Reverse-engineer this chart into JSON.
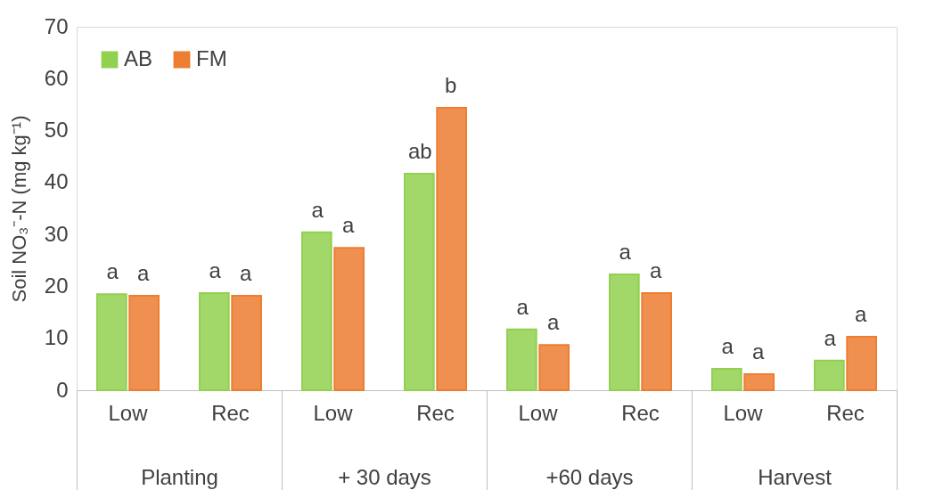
{
  "chart_data": {
    "type": "bar",
    "ylabel": "Soil NO₃⁻-N (mg kg⁻¹)",
    "categories": [
      "Low",
      "Rec",
      "Low",
      "Rec",
      "Low",
      "Rec",
      "Low",
      "Rec"
    ],
    "annotations": [
      "Planting",
      "+ 30 days",
      "+60 days",
      "Harvest"
    ],
    "series": [
      {
        "name": "AB",
        "color": "#92d050",
        "values": [
          18.5,
          18.7,
          30.4,
          41.7,
          11.7,
          22.3,
          4.1,
          5.7
        ],
        "value_labels": [
          "a",
          "a",
          "a",
          "ab",
          "a",
          "a",
          "a",
          "a"
        ]
      },
      {
        "name": "FM",
        "color": "#ed7d31",
        "values": [
          18.2,
          18.2,
          27.4,
          54.4,
          8.7,
          18.7,
          3.1,
          10.3
        ],
        "value_labels": [
          "a",
          "a",
          "a",
          "b",
          "a",
          "a",
          "a",
          "a"
        ]
      }
    ],
    "ylim": [
      0,
      70
    ],
    "yticks": [
      0,
      10,
      20,
      30,
      40,
      50,
      60,
      70
    ],
    "grid": false,
    "legend": "top left"
  }
}
